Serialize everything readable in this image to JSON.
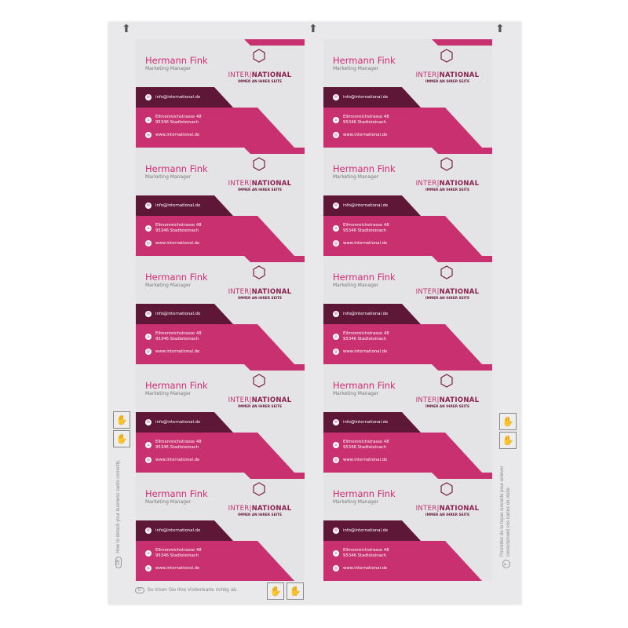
{
  "card": {
    "name": "Hermann Fink",
    "role": "Marketing Manager",
    "logo_left": "INTER",
    "logo_sep": "|",
    "logo_right": "NATIONAL",
    "tagline": "IMMER AN IHRER SEITE",
    "email": "info@international.de",
    "address_line1": "Ellmenreichstrasse 48",
    "address_line2": "95346 Stadtsteinach",
    "web": "www.international.de"
  },
  "card_count": 10,
  "colors": {
    "pink": "#c9306f",
    "dark": "#5e1736",
    "name": "#d12b74",
    "paper": "#e4e4e6"
  },
  "instructions": {
    "en_badge": "GB",
    "en": "How to detach your business cards correctly.",
    "de_badge": "D",
    "de": "So lösen Sie Ihre Visitenkarte richtig ab.",
    "fr_badge": "F",
    "fr": "Procédez de la façon suivante pour enlever correctement vos cartes de visite."
  },
  "icons": {
    "feed_arrow": "up-arrow-icon",
    "email": "mail-icon",
    "address": "home-icon",
    "web": "globe-icon",
    "logo": "hexagon-icon",
    "detach": "detach-pictogram-icon"
  }
}
